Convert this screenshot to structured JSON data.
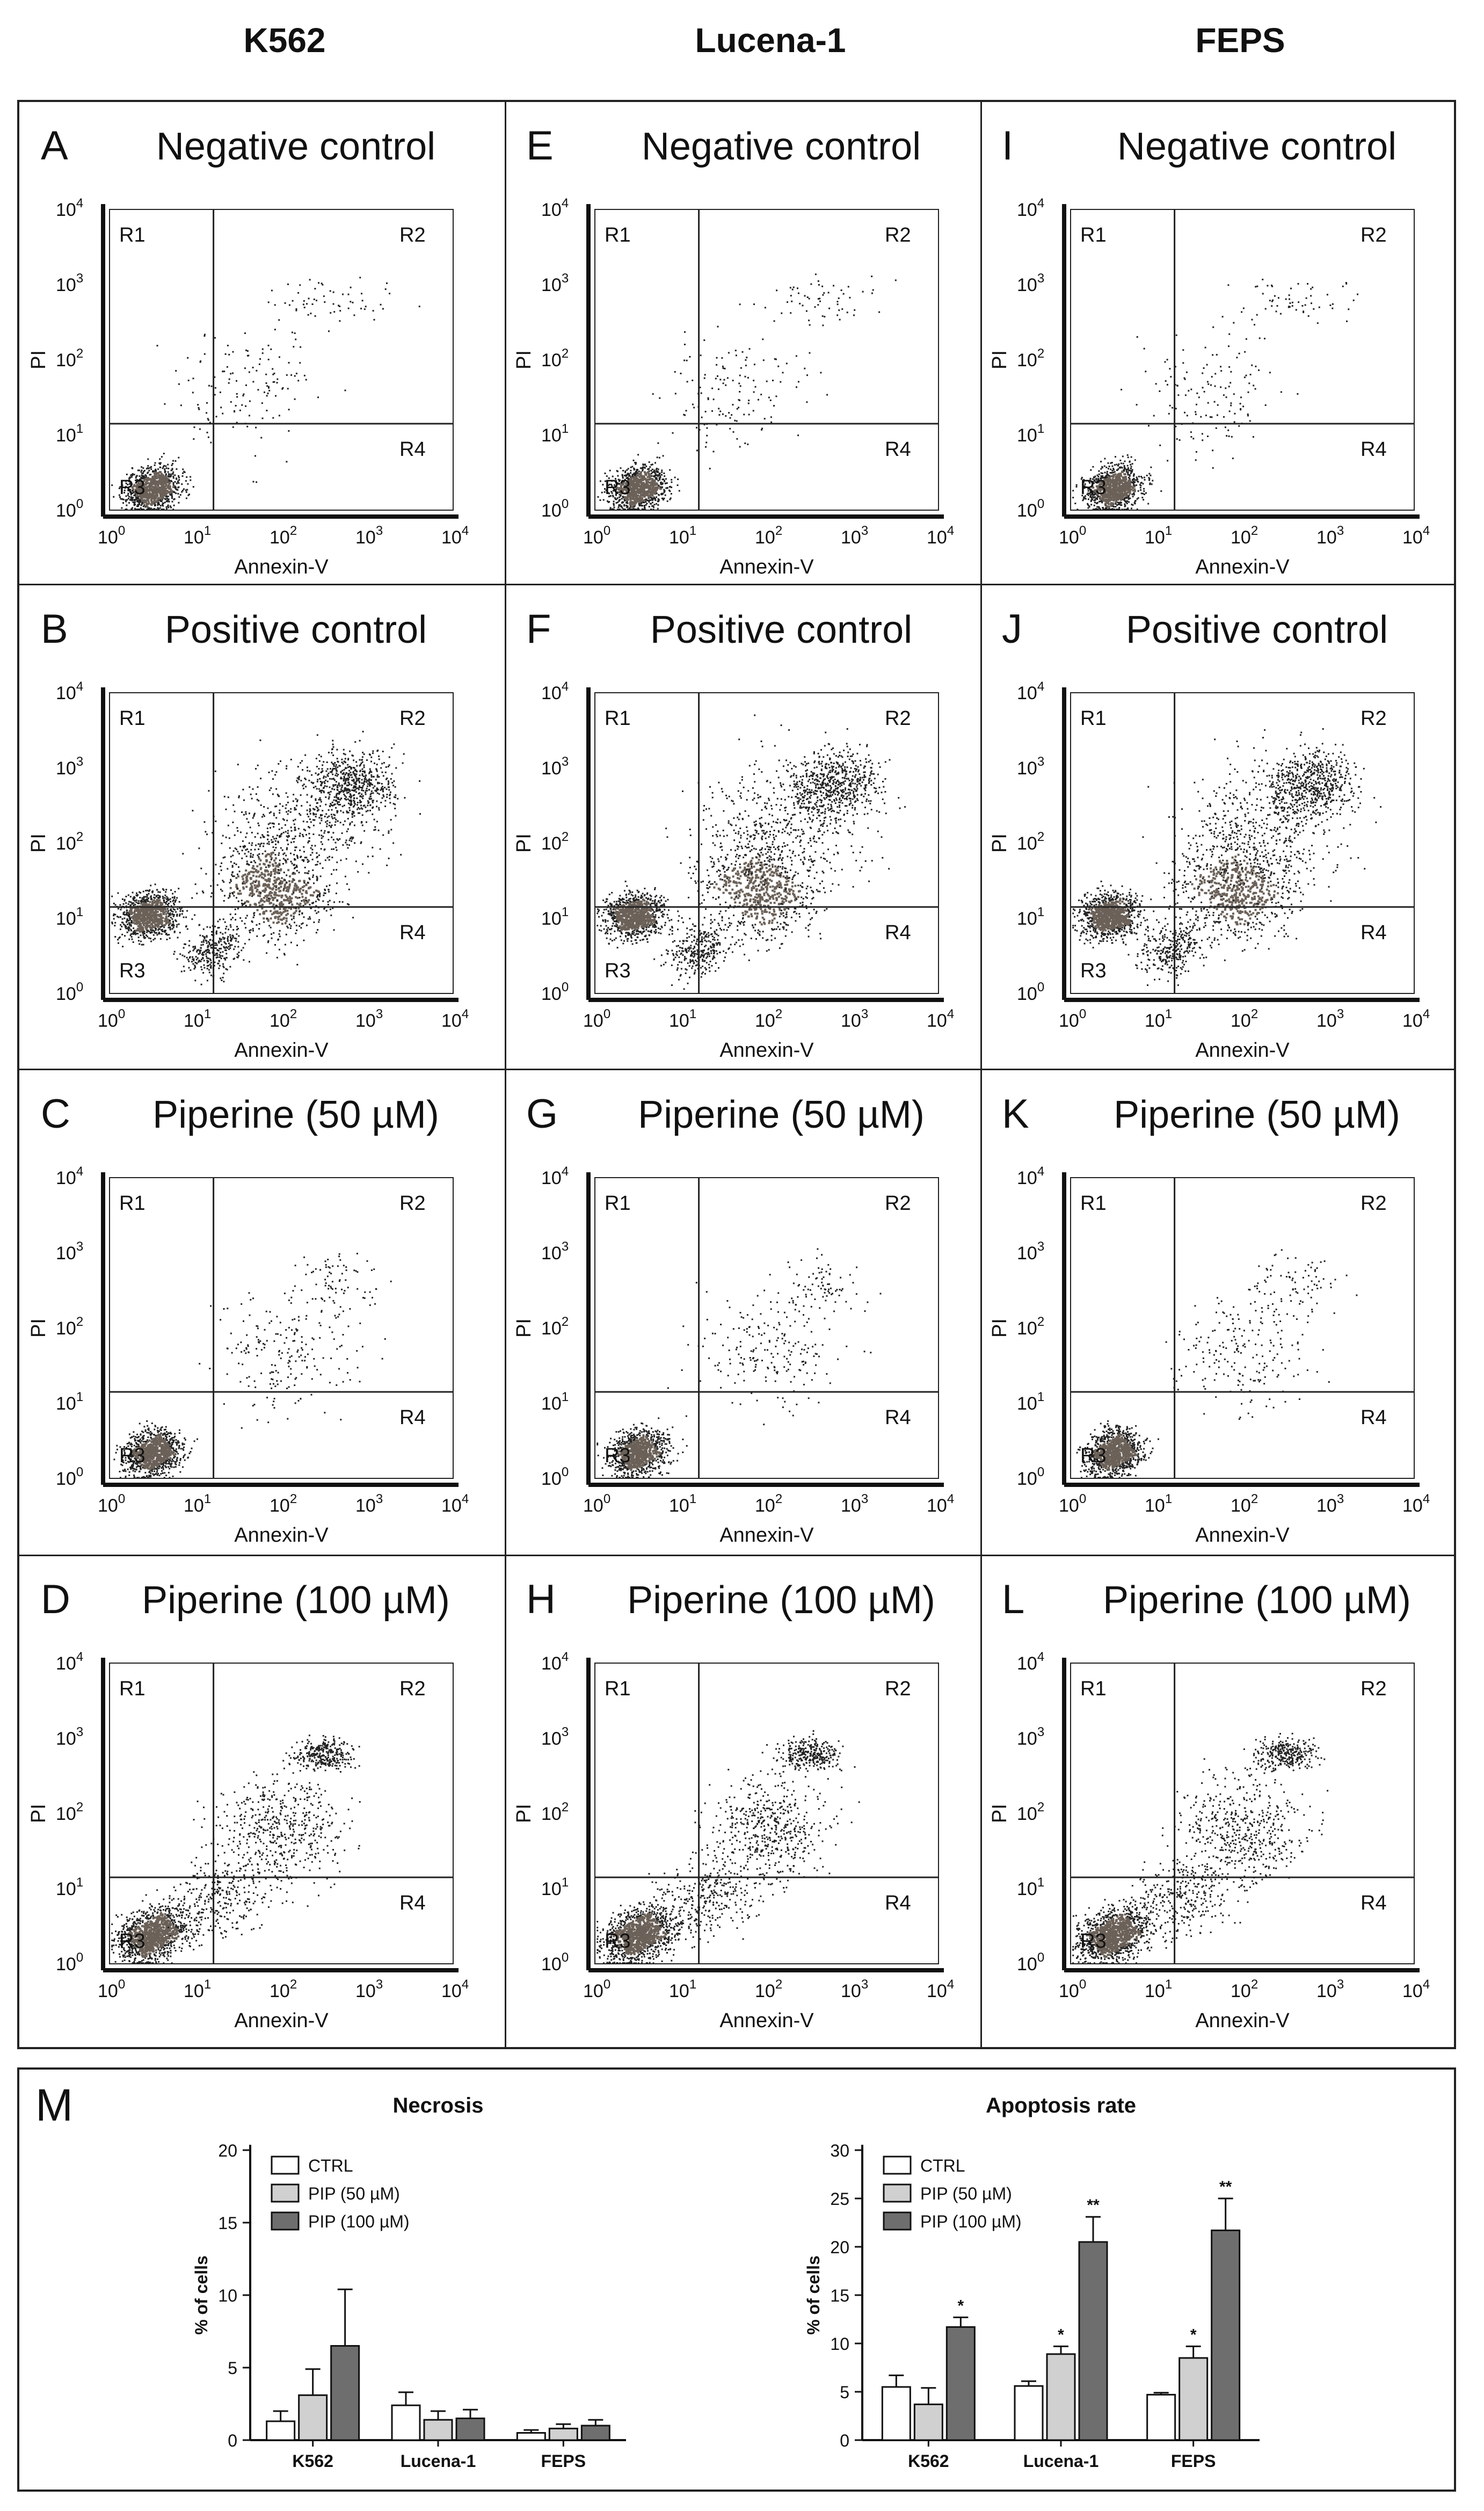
{
  "columns": [
    {
      "label": "K562"
    },
    {
      "label": "Lucena-1"
    },
    {
      "label": "FEPS"
    }
  ],
  "flow_axes": {
    "x_label": "Annexin-V",
    "y_label": "PI",
    "tick_base": "10",
    "tick_exponents": [
      "0",
      "1",
      "2",
      "3",
      "4"
    ],
    "quadrants": [
      "R1",
      "R2",
      "R3",
      "R4"
    ]
  },
  "panels": [
    {
      "letter": "A",
      "title": "Negative control"
    },
    {
      "letter": "B",
      "title": "Positive control"
    },
    {
      "letter": "C",
      "title": "Piperine (50 µM)"
    },
    {
      "letter": "D",
      "title": "Piperine (100 µM)"
    },
    {
      "letter": "E",
      "title": "Negative control"
    },
    {
      "letter": "F",
      "title": "Positive control"
    },
    {
      "letter": "G",
      "title": "Piperine (50 µM)"
    },
    {
      "letter": "H",
      "title": "Piperine (100 µM)"
    },
    {
      "letter": "I",
      "title": "Negative control"
    },
    {
      "letter": "J",
      "title": "Positive control"
    },
    {
      "letter": "K",
      "title": "Piperine (50 µM)"
    },
    {
      "letter": "L",
      "title": "Piperine (100 µM)"
    }
  ],
  "bottom_panel": {
    "letter": "M"
  },
  "chart_data": [
    {
      "type": "bar",
      "title": "Necrosis",
      "ylabel": "% of cells",
      "xlabel": "",
      "ylim": [
        0,
        20
      ],
      "yticks": [
        "0",
        "5",
        "10",
        "15",
        "20"
      ],
      "categories": [
        "K562",
        "Lucena-1",
        "FEPS"
      ],
      "series": [
        {
          "name": "CTRL",
          "color": "#ffffff",
          "values": [
            1.3,
            2.4,
            0.5
          ],
          "errors": [
            0.7,
            0.9,
            0.2
          ],
          "significance": [
            "",
            "",
            ""
          ]
        },
        {
          "name": "PIP (50 µM)",
          "color": "#d0d0d0",
          "values": [
            3.1,
            1.4,
            0.8
          ],
          "errors": [
            1.8,
            0.6,
            0.3
          ],
          "significance": [
            "",
            "",
            ""
          ]
        },
        {
          "name": "PIP (100 µM)",
          "color": "#6e6e6e",
          "values": [
            6.5,
            1.5,
            1.0
          ],
          "errors": [
            3.9,
            0.6,
            0.4
          ],
          "significance": [
            "",
            "",
            ""
          ]
        }
      ],
      "legend": "top-left"
    },
    {
      "type": "bar",
      "title": "Apoptosis rate",
      "ylabel": "% of cells",
      "xlabel": "",
      "ylim": [
        0,
        30
      ],
      "yticks": [
        "0",
        "5",
        "10",
        "15",
        "20",
        "25",
        "30"
      ],
      "categories": [
        "K562",
        "Lucena-1",
        "FEPS"
      ],
      "series": [
        {
          "name": "CTRL",
          "color": "#ffffff",
          "values": [
            5.5,
            5.6,
            4.7
          ],
          "errors": [
            1.2,
            0.5,
            0.2
          ],
          "significance": [
            "",
            "",
            ""
          ]
        },
        {
          "name": "PIP (50 µM)",
          "color": "#d0d0d0",
          "values": [
            3.7,
            8.9,
            8.5
          ],
          "errors": [
            1.7,
            0.8,
            1.2
          ],
          "significance": [
            "",
            "*",
            "*"
          ]
        },
        {
          "name": "PIP (100 µM)",
          "color": "#6e6e6e",
          "values": [
            11.7,
            20.5,
            21.7
          ],
          "errors": [
            1.0,
            2.6,
            3.3
          ],
          "significance": [
            "*",
            "**",
            "**"
          ]
        }
      ],
      "legend": "top-left"
    }
  ]
}
